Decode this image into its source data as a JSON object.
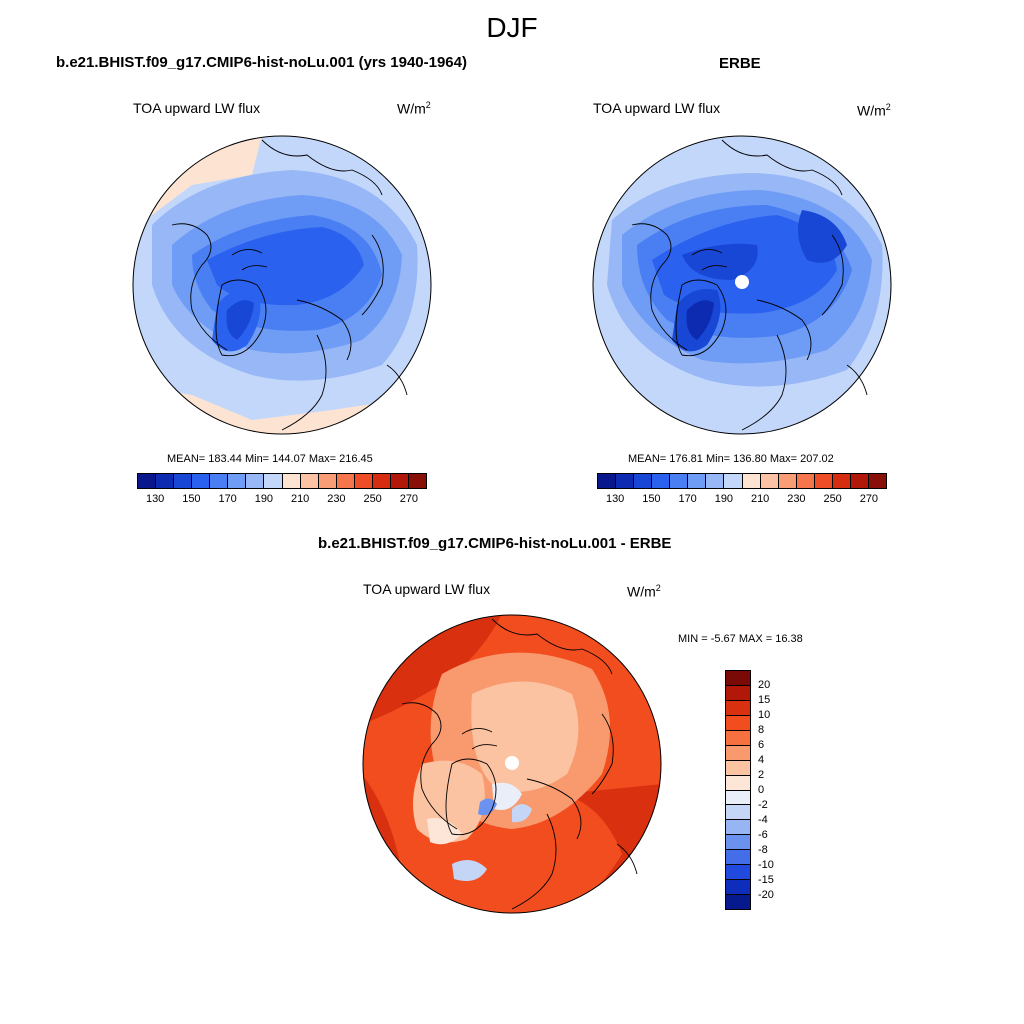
{
  "figure": {
    "title": "DJF"
  },
  "panels": [
    {
      "title": "b.e21.BHIST.f09_g17.CMIP6-hist-noLu.001 (yrs 1940-1964)",
      "variable": "TOA upward LW flux",
      "units": "W/m",
      "units_exp": "2",
      "stats": "MEAN= 183.44  Min= 144.07  Max= 216.45",
      "colorbar": {
        "colors": [
          "#08178c",
          "#0d2bb0",
          "#1847d6",
          "#2a61ee",
          "#4a7ff3",
          "#6f9cf5",
          "#97b7f7",
          "#c3d7fa",
          "#fde3d2",
          "#fbc2a3",
          "#f99d77",
          "#f5764d",
          "#ee4d27",
          "#d62d10",
          "#b2180a",
          "#881008"
        ],
        "tick_labels": [
          "130",
          "150",
          "170",
          "190",
          "210",
          "230",
          "250",
          "270"
        ]
      }
    },
    {
      "title": "ERBE",
      "variable": "TOA upward LW flux",
      "units": "W/m",
      "units_exp": "2",
      "stats": "MEAN= 176.81  Min= 136.80  Max= 207.02",
      "colorbar": {
        "colors": [
          "#08178c",
          "#0d2bb0",
          "#1847d6",
          "#2a61ee",
          "#4a7ff3",
          "#6f9cf5",
          "#97b7f7",
          "#c3d7fa",
          "#fde3d2",
          "#fbc2a3",
          "#f99d77",
          "#f5764d",
          "#ee4d27",
          "#d62d10",
          "#b2180a",
          "#881008"
        ],
        "tick_labels": [
          "130",
          "150",
          "170",
          "190",
          "210",
          "230",
          "250",
          "270"
        ]
      }
    },
    {
      "title": "b.e21.BHIST.f09_g17.CMIP6-hist-noLu.001 - ERBE",
      "variable": "TOA upward LW flux",
      "units": "W/m",
      "units_exp": "2",
      "stats": "MIN =  -5.67 MAX =  16.38",
      "colorbar": {
        "colors": [
          "#7a0a06",
          "#b2180a",
          "#d9300f",
          "#f24d1f",
          "#f7703f",
          "#f99a6e",
          "#fbc3a1",
          "#fde6d8",
          "#e9eef8",
          "#c4d5f5",
          "#98b5f3",
          "#6c92ef",
          "#446ee9",
          "#2149dd",
          "#0f2dbb",
          "#061a8e"
        ],
        "tick_labels": [
          "20",
          "15",
          "10",
          "8",
          "6",
          "4",
          "2",
          "0",
          "-2",
          "-4",
          "-6",
          "-8",
          "-10",
          "-15",
          "-20"
        ]
      }
    }
  ]
}
